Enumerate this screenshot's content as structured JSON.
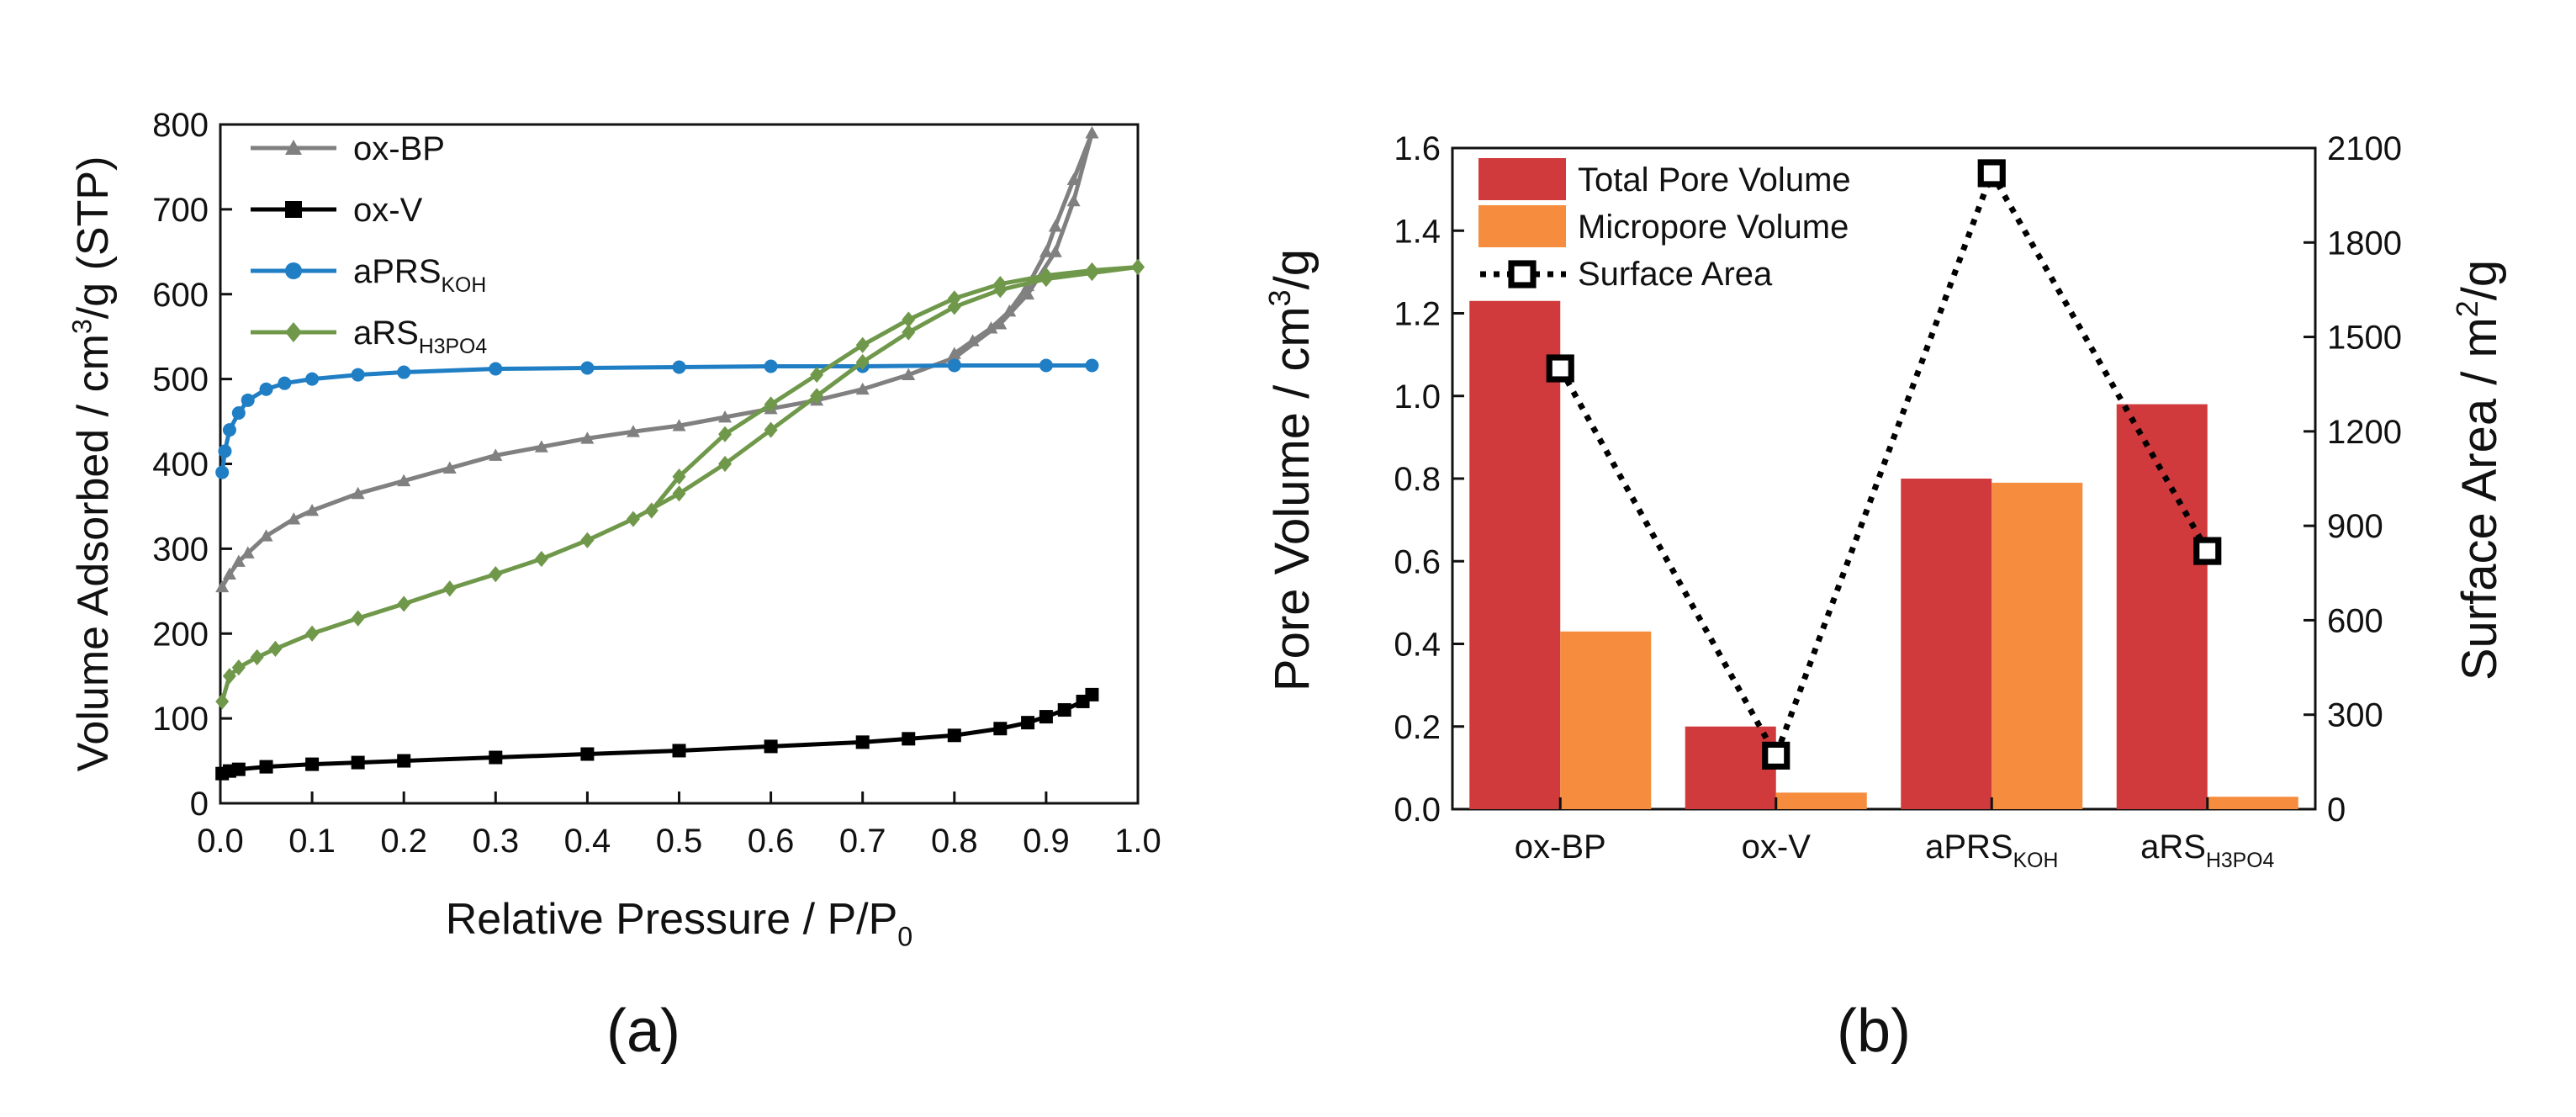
{
  "panels": {
    "a": "(a)",
    "b": "(b)"
  },
  "colors": {
    "ox_bp": "#808080",
    "ox_v": "#000000",
    "aprs_koh": "#1f7ec4",
    "ars_h3po4": "#70984b",
    "total_pore": "#d03a3c",
    "micropore": "#f58c3e",
    "surface": "#000000"
  },
  "chart_data": [
    {
      "type": "line",
      "panel": "(a)",
      "xlabel": "Relative Pressure / P/P",
      "xlabel_sub": "0",
      "ylabel": "Volume Adsorbed / cm",
      "ylabel_sup": "3",
      "ylabel_tail": "/g (STP)",
      "xlim": [
        0.0,
        1.0
      ],
      "ylim": [
        0,
        800
      ],
      "xticks": [
        "0.0",
        "0.1",
        "0.2",
        "0.3",
        "0.4",
        "0.5",
        "0.6",
        "0.7",
        "0.8",
        "0.9",
        "1.0"
      ],
      "yticks": [
        "0",
        "100",
        "200",
        "300",
        "400",
        "500",
        "600",
        "700",
        "800"
      ],
      "legend_position": "top-left",
      "series": [
        {
          "key": "ox_bp",
          "name": "ox-BP",
          "sub": "",
          "marker": "triangle",
          "x": [
            0.002,
            0.01,
            0.02,
            0.03,
            0.05,
            0.08,
            0.1,
            0.15,
            0.2,
            0.25,
            0.3,
            0.35,
            0.4,
            0.45,
            0.5,
            0.55,
            0.6,
            0.65,
            0.7,
            0.75,
            0.8,
            0.85,
            0.88,
            0.91,
            0.93,
            0.95
          ],
          "y": [
            255,
            270,
            285,
            295,
            315,
            335,
            345,
            365,
            380,
            395,
            410,
            420,
            430,
            438,
            445,
            455,
            465,
            475,
            488,
            505,
            525,
            565,
            600,
            650,
            710,
            790
          ],
          "desorption_x": [
            0.95,
            0.93,
            0.91,
            0.9,
            0.88,
            0.86,
            0.84,
            0.82,
            0.8
          ],
          "desorption_y": [
            790,
            735,
            680,
            650,
            610,
            580,
            560,
            545,
            530
          ]
        },
        {
          "key": "ox_v",
          "name": "ox-V",
          "sub": "",
          "marker": "square",
          "x": [
            0.002,
            0.01,
            0.02,
            0.05,
            0.1,
            0.15,
            0.2,
            0.3,
            0.4,
            0.5,
            0.6,
            0.7,
            0.75,
            0.8,
            0.85,
            0.88,
            0.9,
            0.92,
            0.94,
            0.95
          ],
          "y": [
            35,
            38,
            40,
            43,
            46,
            48,
            50,
            54,
            58,
            62,
            67,
            72,
            76,
            80,
            88,
            95,
            102,
            110,
            120,
            128
          ],
          "desorption_x": [],
          "desorption_y": []
        },
        {
          "key": "aprs_koh",
          "name": "aPRS",
          "sub": "KOH",
          "marker": "circle",
          "x": [
            0.002,
            0.005,
            0.01,
            0.02,
            0.03,
            0.05,
            0.07,
            0.1,
            0.15,
            0.2,
            0.3,
            0.4,
            0.5,
            0.6,
            0.7,
            0.8,
            0.9,
            0.95
          ],
          "y": [
            390,
            415,
            440,
            460,
            475,
            488,
            495,
            500,
            505,
            508,
            512,
            513,
            514,
            515,
            515,
            516,
            516,
            516
          ],
          "desorption_x": [],
          "desorption_y": []
        },
        {
          "key": "ars_h3po4",
          "name": "aRS",
          "sub": "H3PO4",
          "marker": "diamond",
          "x": [
            0.002,
            0.01,
            0.02,
            0.04,
            0.06,
            0.1,
            0.15,
            0.2,
            0.25,
            0.3,
            0.35,
            0.4,
            0.45,
            0.5,
            0.55,
            0.6,
            0.65,
            0.7,
            0.75,
            0.8,
            0.85,
            0.9,
            0.95,
            1.0
          ],
          "y": [
            120,
            150,
            160,
            172,
            182,
            200,
            218,
            235,
            253,
            270,
            288,
            310,
            335,
            365,
            400,
            440,
            480,
            520,
            555,
            585,
            605,
            618,
            625,
            632
          ],
          "desorption_x": [
            1.0,
            0.95,
            0.9,
            0.85,
            0.8,
            0.75,
            0.7,
            0.65,
            0.6,
            0.55,
            0.5,
            0.47
          ],
          "desorption_y": [
            632,
            628,
            622,
            612,
            595,
            570,
            540,
            505,
            470,
            435,
            385,
            345
          ]
        }
      ]
    },
    {
      "type": "bar",
      "panel": "(b)",
      "categories": [
        {
          "main": "ox-BP",
          "sub": ""
        },
        {
          "main": "ox-V",
          "sub": ""
        },
        {
          "main": "aPRS",
          "sub": "KOH"
        },
        {
          "main": "aRS",
          "sub": "H3PO4"
        }
      ],
      "ylabel": "Pore Volume / cm",
      "ylabel_sup": "3",
      "ylabel_tail": "/g",
      "y2label": "Surface Area / m",
      "y2label_sup": "2",
      "y2label_tail": "/g",
      "ylim": [
        0,
        1.6
      ],
      "y2lim": [
        0,
        2100
      ],
      "yticks": [
        "0.0",
        "0.2",
        "0.4",
        "0.6",
        "0.8",
        "1.0",
        "1.2",
        "1.4",
        "1.6"
      ],
      "y2ticks": [
        "0",
        "300",
        "600",
        "900",
        "1200",
        "1500",
        "1800",
        "2100"
      ],
      "legend_position": "top-left",
      "series": [
        {
          "key": "total_pore",
          "name": "Total Pore Volume",
          "axis": "left",
          "values": [
            1.23,
            0.2,
            0.8,
            0.98
          ]
        },
        {
          "key": "micropore",
          "name": "Micropore Volume",
          "axis": "left",
          "values": [
            0.43,
            0.04,
            0.79,
            0.03
          ]
        },
        {
          "key": "surface",
          "name": "Surface Area",
          "axis": "right",
          "style": "dotted-line-open-square",
          "values": [
            1400,
            170,
            2020,
            820
          ]
        }
      ]
    }
  ]
}
